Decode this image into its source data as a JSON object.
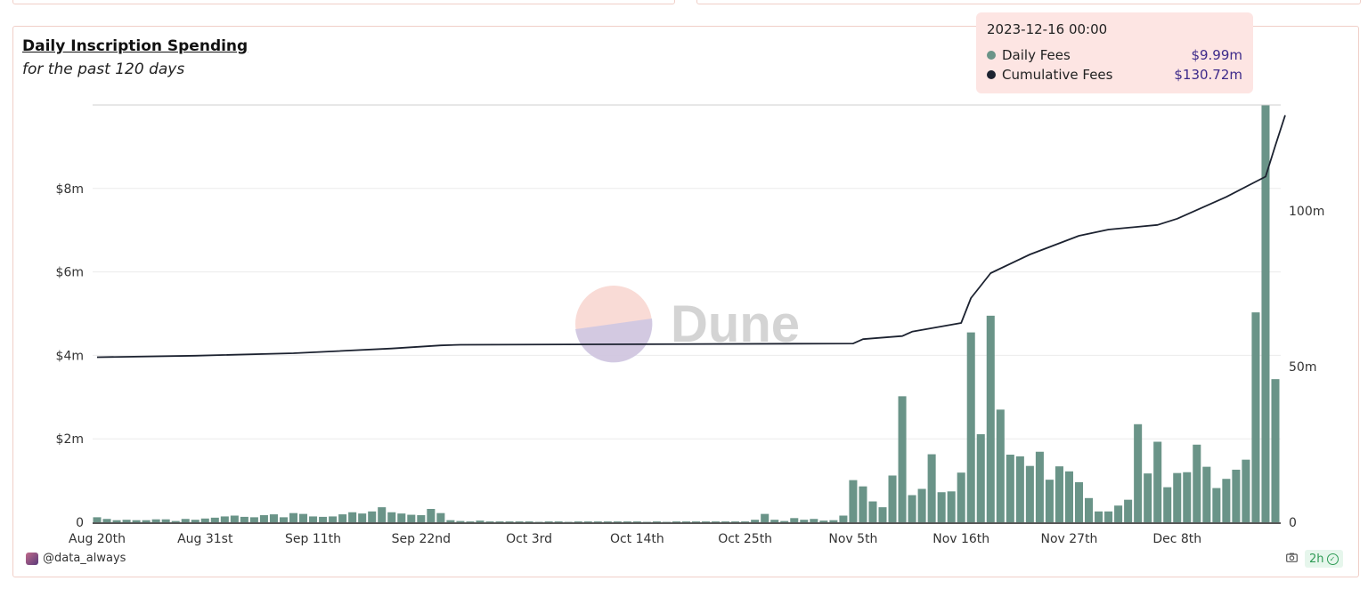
{
  "tooltip": {
    "date": "2023-12-16 00:00",
    "rows": [
      {
        "label": "Daily Fees",
        "value": "$9.99m",
        "color": "#6a9488"
      },
      {
        "label": "Cumulative Fees",
        "value": "$130.72m",
        "color": "#1c2230"
      }
    ]
  },
  "footer": {
    "user": "@data_always",
    "age": "2h"
  },
  "watermark": "Dune",
  "chart_data": {
    "type": "bar+line",
    "title": "Daily Inscription Spending",
    "subtitle": "for the past 120 days",
    "x_tick_labels": [
      "Aug 20th",
      "Aug 31st",
      "Sep 11th",
      "Sep 22nd",
      "Oct 3rd",
      "Oct 14th",
      "Oct 25th",
      "Nov 5th",
      "Nov 16th",
      "Nov 27th",
      "Dec 8th"
    ],
    "y_left": {
      "ticks": [
        "0",
        "$2m",
        "$4m",
        "$6m",
        "$8m"
      ],
      "values": [
        0,
        2,
        4,
        6,
        8
      ],
      "range": [
        0,
        10
      ],
      "unit": "millions USD"
    },
    "y_right": {
      "ticks": [
        "0",
        "50m",
        "100m"
      ],
      "values": [
        0,
        50,
        100
      ],
      "range": [
        0,
        134
      ],
      "unit": "millions USD"
    },
    "series": [
      {
        "name": "Daily Fees",
        "type": "bar",
        "axis": "left",
        "color": "#6a9488",
        "values": [
          0.12,
          0.08,
          0.05,
          0.06,
          0.05,
          0.05,
          0.07,
          0.07,
          0.03,
          0.08,
          0.06,
          0.09,
          0.11,
          0.14,
          0.16,
          0.13,
          0.12,
          0.17,
          0.19,
          0.12,
          0.22,
          0.2,
          0.14,
          0.13,
          0.14,
          0.19,
          0.24,
          0.21,
          0.26,
          0.36,
          0.24,
          0.21,
          0.18,
          0.17,
          0.32,
          0.22,
          0.05,
          0.03,
          0.02,
          0.04,
          0.02,
          0.02,
          0.02,
          0.02,
          0.02,
          0.01,
          0.02,
          0.02,
          0.01,
          0.02,
          0.02,
          0.02,
          0.02,
          0.02,
          0.02,
          0.02,
          0.01,
          0.02,
          0.01,
          0.02,
          0.02,
          0.02,
          0.02,
          0.02,
          0.02,
          0.02,
          0.02,
          0.06,
          0.2,
          0.06,
          0.03,
          0.1,
          0.06,
          0.08,
          0.04,
          0.05,
          0.16,
          1.01,
          0.86,
          0.5,
          0.36,
          1.12,
          3.02,
          0.65,
          0.8,
          1.63,
          0.72,
          0.74,
          1.19,
          4.55,
          2.11,
          4.95,
          2.7,
          1.62,
          1.58,
          1.35,
          1.69,
          1.02,
          1.34,
          1.22,
          0.96,
          0.58,
          0.26,
          0.26,
          0.4,
          0.54,
          2.35,
          1.17,
          1.93,
          0.84,
          1.18,
          1.2,
          1.86,
          1.33,
          0.82,
          1.04,
          1.26,
          1.5,
          5.03,
          9.99,
          3.43
        ]
      },
      {
        "name": "Cumulative Fees",
        "type": "line",
        "axis": "right",
        "color": "#1c2230",
        "points": [
          [
            0,
            53.0
          ],
          [
            10,
            53.5
          ],
          [
            20,
            54.3
          ],
          [
            30,
            55.8
          ],
          [
            35,
            56.8
          ],
          [
            37,
            57.0
          ],
          [
            77,
            57.4
          ],
          [
            78,
            58.8
          ],
          [
            82,
            59.8
          ],
          [
            83,
            61.2
          ],
          [
            88,
            64.0
          ],
          [
            89,
            72.0
          ],
          [
            90,
            76.0
          ],
          [
            91,
            80.0
          ],
          [
            95,
            86.0
          ],
          [
            100,
            92.0
          ],
          [
            103,
            94.0
          ],
          [
            108,
            95.5
          ],
          [
            110,
            97.5
          ],
          [
            115,
            104.5
          ],
          [
            119,
            111.0
          ],
          [
            120,
            121.0
          ],
          [
            121,
            130.72
          ]
        ]
      }
    ],
    "legend": "none",
    "grid": true
  }
}
